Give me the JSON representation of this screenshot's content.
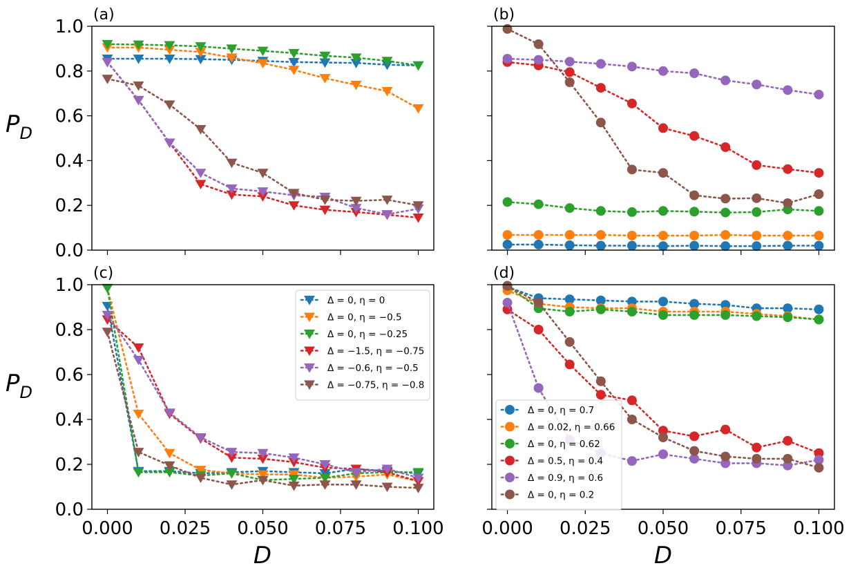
{
  "figure": {
    "ylabel_main": "P",
    "ylabel_sub": "D",
    "xlabel": "D"
  },
  "chart_data": [
    {
      "panel": "(a)",
      "type": "line",
      "marker": "triangle-down",
      "x": [
        0,
        0.01,
        0.02,
        0.03,
        0.04,
        0.05,
        0.06,
        0.07,
        0.08,
        0.09,
        0.1
      ],
      "xlim": [
        -0.005,
        0.105
      ],
      "ylim": [
        0,
        1
      ],
      "xticks": [
        "0.000",
        "0.025",
        "0.050",
        "0.075",
        "0.100"
      ],
      "yticks": [
        "0.0",
        "0.2",
        "0.4",
        "0.6",
        "0.8",
        "1.0"
      ],
      "series": [
        {
          "name": "Δ = 0, η = 0",
          "color": "#1f77b4",
          "values": [
            0.855,
            0.855,
            0.855,
            0.853,
            0.85,
            0.845,
            0.84,
            0.838,
            0.836,
            0.828,
            0.825
          ]
        },
        {
          "name": "Δ = 0, η = −0.5",
          "color": "#ff7f0e",
          "values": [
            0.905,
            0.905,
            0.895,
            0.885,
            0.86,
            0.835,
            0.805,
            0.768,
            0.738,
            0.71,
            0.633
          ]
        },
        {
          "name": "Δ = 0, η = −0.25",
          "color": "#2ca02c",
          "values": [
            0.92,
            0.918,
            0.915,
            0.91,
            0.9,
            0.89,
            0.88,
            0.868,
            0.86,
            0.845,
            0.825
          ]
        },
        {
          "name": "Δ = −1.5, η = −0.75",
          "color": "#d62728",
          "values": [
            0.84,
            0.67,
            0.48,
            0.295,
            0.248,
            0.24,
            0.2,
            0.18,
            0.17,
            0.158,
            0.145
          ]
        },
        {
          "name": "Δ = −0.6, η = −0.5",
          "color": "#9467bd",
          "values": [
            0.84,
            0.67,
            0.48,
            0.345,
            0.275,
            0.262,
            0.245,
            0.238,
            0.188,
            0.16,
            0.185
          ]
        },
        {
          "name": "Δ = −0.75, η = −0.8",
          "color": "#8c564b",
          "values": [
            0.765,
            0.735,
            0.65,
            0.54,
            0.39,
            0.345,
            0.255,
            0.225,
            0.22,
            0.225,
            0.2
          ]
        }
      ]
    },
    {
      "panel": "(b)",
      "type": "line",
      "marker": "circle",
      "x": [
        0,
        0.01,
        0.02,
        0.03,
        0.04,
        0.05,
        0.06,
        0.07,
        0.08,
        0.09,
        0.1
      ],
      "xlim": [
        -0.005,
        0.105
      ],
      "ylim": [
        0,
        1
      ],
      "series": [
        {
          "name": "Δ = 0, η = 0.7",
          "color": "#1f77b4",
          "values": [
            0.025,
            0.025,
            0.022,
            0.02,
            0.02,
            0.018,
            0.02,
            0.018,
            0.018,
            0.02,
            0.02
          ]
        },
        {
          "name": "Δ = 0.02, η = 0.66",
          "color": "#ff7f0e",
          "values": [
            0.068,
            0.068,
            0.068,
            0.068,
            0.065,
            0.065,
            0.065,
            0.068,
            0.065,
            0.065,
            0.065
          ]
        },
        {
          "name": "Δ = 0, η = 0.62",
          "color": "#2ca02c",
          "values": [
            0.215,
            0.205,
            0.188,
            0.175,
            0.17,
            0.175,
            0.172,
            0.168,
            0.17,
            0.182,
            0.175
          ]
        },
        {
          "name": "Δ = 0.5, η = 0.4",
          "color": "#d62728",
          "values": [
            0.84,
            0.825,
            0.795,
            0.725,
            0.655,
            0.545,
            0.51,
            0.46,
            0.38,
            0.362,
            0.345
          ]
        },
        {
          "name": "Δ = 0.9, η = 0.6",
          "color": "#9467bd",
          "values": [
            0.855,
            0.85,
            0.842,
            0.832,
            0.82,
            0.8,
            0.79,
            0.758,
            0.74,
            0.715,
            0.695
          ]
        },
        {
          "name": "Δ = 0, η = 0.2",
          "color": "#8c564b",
          "values": [
            0.988,
            0.92,
            0.75,
            0.57,
            0.36,
            0.345,
            0.245,
            0.23,
            0.232,
            0.21,
            0.25
          ]
        }
      ]
    },
    {
      "panel": "(c)",
      "type": "line",
      "marker": "triangle-down",
      "x": [
        0,
        0.01,
        0.02,
        0.03,
        0.04,
        0.05,
        0.06,
        0.07,
        0.08,
        0.09,
        0.1
      ],
      "xlim": [
        -0.005,
        0.105
      ],
      "ylim": [
        0,
        1
      ],
      "xticks": [
        "0.000",
        "0.025",
        "0.050",
        "0.075",
        "0.100"
      ],
      "yticks": [
        "0.0",
        "0.2",
        "0.4",
        "0.6",
        "0.8",
        "1.0"
      ],
      "legend": "upper right",
      "series": [
        {
          "name": "Δ = 0, η = 0",
          "legend_label": "Δ = 0, η = 0",
          "color": "#1f77b4",
          "values": [
            0.905,
            0.17,
            0.17,
            0.16,
            0.165,
            0.17,
            0.165,
            0.16,
            0.18,
            0.17,
            0.16
          ]
        },
        {
          "name": "Δ = 0, η = −0.5",
          "legend_label": "Δ = 0, η = −0.5",
          "color": "#ff7f0e",
          "values": [
            0.985,
            0.425,
            0.25,
            0.175,
            0.16,
            0.155,
            0.155,
            0.14,
            0.145,
            0.155,
            0.125
          ]
        },
        {
          "name": "Δ = 0, η = −0.25",
          "legend_label": "Δ = 0, η = −0.25",
          "color": "#2ca02c",
          "values": [
            0.985,
            0.165,
            0.165,
            0.15,
            0.16,
            0.13,
            0.135,
            0.14,
            0.16,
            0.165,
            0.165
          ]
        },
        {
          "name": "Δ = −1.5, η = −0.75",
          "legend_label": "Δ = −1.5, η = −0.75",
          "color": "#d62728",
          "values": [
            0.845,
            0.72,
            0.425,
            0.315,
            0.23,
            0.225,
            0.21,
            0.185,
            0.18,
            0.165,
            0.125
          ]
        },
        {
          "name": "Δ = −0.6, η = −0.5",
          "legend_label": "Δ = −0.6, η = −0.5",
          "color": "#9467bd",
          "values": [
            0.865,
            0.665,
            0.43,
            0.32,
            0.255,
            0.25,
            0.23,
            0.2,
            0.165,
            0.18,
            0.14
          ]
        },
        {
          "name": "Δ = −0.75, η = −0.8",
          "legend_label": "Δ = −0.75, η = −0.8",
          "color": "#8c564b",
          "values": [
            0.79,
            0.255,
            0.195,
            0.14,
            0.11,
            0.13,
            0.105,
            0.11,
            0.11,
            0.1,
            0.095
          ]
        }
      ]
    },
    {
      "panel": "(d)",
      "type": "line",
      "marker": "circle",
      "x": [
        0,
        0.01,
        0.02,
        0.03,
        0.04,
        0.05,
        0.06,
        0.07,
        0.08,
        0.09,
        0.1
      ],
      "xlim": [
        -0.005,
        0.105
      ],
      "ylim": [
        0,
        1
      ],
      "xticks": [
        "0.000",
        "0.025",
        "0.050",
        "0.075",
        "0.100"
      ],
      "legend": "lower left",
      "series": [
        {
          "name": "Δ = 0, η = 0.7",
          "legend_label": "Δ = 0, η = 0.7",
          "color": "#1f77b4",
          "values": [
            0.99,
            0.94,
            0.935,
            0.93,
            0.925,
            0.925,
            0.915,
            0.91,
            0.895,
            0.895,
            0.89
          ]
        },
        {
          "name": "Δ = 0.02, η = 0.66",
          "legend_label": "Δ = 0.02, η = 0.66",
          "color": "#ff7f0e",
          "values": [
            0.975,
            0.915,
            0.9,
            0.895,
            0.895,
            0.88,
            0.88,
            0.88,
            0.87,
            0.86,
            0.845
          ]
        },
        {
          "name": "Δ = 0, η = 0.62",
          "legend_label": "Δ = 0, η = 0.62",
          "color": "#2ca02c",
          "values": [
            0.995,
            0.895,
            0.88,
            0.89,
            0.88,
            0.865,
            0.865,
            0.865,
            0.86,
            0.855,
            0.845
          ]
        },
        {
          "name": "Δ = 0.5, η = 0.4",
          "legend_label": "Δ = 0.5, η = 0.4",
          "color": "#d62728",
          "values": [
            0.89,
            0.8,
            0.645,
            0.51,
            0.485,
            0.35,
            0.325,
            0.355,
            0.275,
            0.305,
            0.25
          ]
        },
        {
          "name": "Δ = 0.9, η = 0.6",
          "legend_label": "Δ = 0.9, η = 0.6",
          "color": "#9467bd",
          "values": [
            0.92,
            0.54,
            0.31,
            0.25,
            0.215,
            0.245,
            0.225,
            0.205,
            0.205,
            0.195,
            0.22
          ]
        },
        {
          "name": "Δ = 0, η = 0.2",
          "legend_label": "Δ = 0, η = 0.2",
          "color": "#8c564b",
          "values": [
            0.995,
            0.92,
            0.745,
            0.57,
            0.4,
            0.32,
            0.26,
            0.235,
            0.225,
            0.225,
            0.185
          ]
        }
      ]
    }
  ]
}
